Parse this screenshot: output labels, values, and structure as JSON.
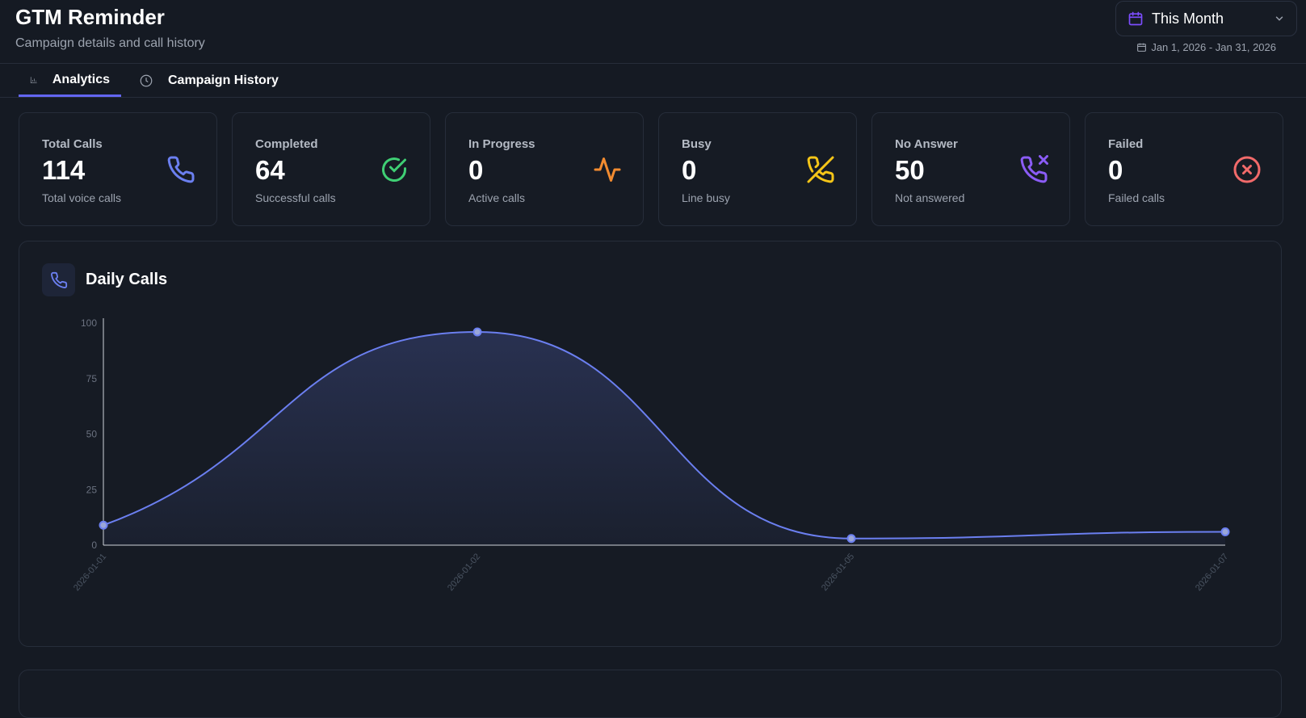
{
  "header": {
    "title": "GTM Reminder",
    "subtitle": "Campaign details and call history",
    "range_select": {
      "label": "This Month",
      "icon": "calendar-icon"
    },
    "range_dates": "Jan 1, 2026 - Jan 31, 2026"
  },
  "tabs": [
    {
      "label": "Analytics",
      "icon": "bar-chart-icon",
      "active": true
    },
    {
      "label": "Campaign History",
      "icon": "clock-icon",
      "active": false
    }
  ],
  "stats": [
    {
      "label": "Total Calls",
      "value": "114",
      "sub": "Total voice calls",
      "icon": "phone-icon",
      "color": "#6b7ff0"
    },
    {
      "label": "Completed",
      "value": "64",
      "sub": "Successful calls",
      "icon": "check-circle-icon",
      "color": "#3fcf74"
    },
    {
      "label": "In Progress",
      "value": "0",
      "sub": "Active calls",
      "icon": "activity-icon",
      "color": "#f28b30"
    },
    {
      "label": "Busy",
      "value": "0",
      "sub": "Line busy",
      "icon": "phone-off-icon",
      "color": "#f5c518"
    },
    {
      "label": "No Answer",
      "value": "50",
      "sub": "Not answered",
      "icon": "phone-missed-icon",
      "color": "#8b5cf6"
    },
    {
      "label": "Failed",
      "value": "0",
      "sub": "Failed calls",
      "icon": "x-circle-icon",
      "color": "#f16a6a"
    }
  ],
  "daily_calls": {
    "title": "Daily Calls",
    "icon": "phone-icon"
  },
  "chart_data": {
    "type": "area",
    "title": "Daily Calls",
    "categories": [
      "2026-01-01",
      "2026-01-02",
      "2026-01-05",
      "2026-01-07"
    ],
    "values": [
      9,
      96,
      3,
      6
    ],
    "xlabel": "",
    "ylabel": "",
    "ylim": [
      0,
      100
    ],
    "yticks": [
      0,
      25,
      50,
      75,
      100
    ],
    "grid": false,
    "color": "#6b7ff0"
  }
}
